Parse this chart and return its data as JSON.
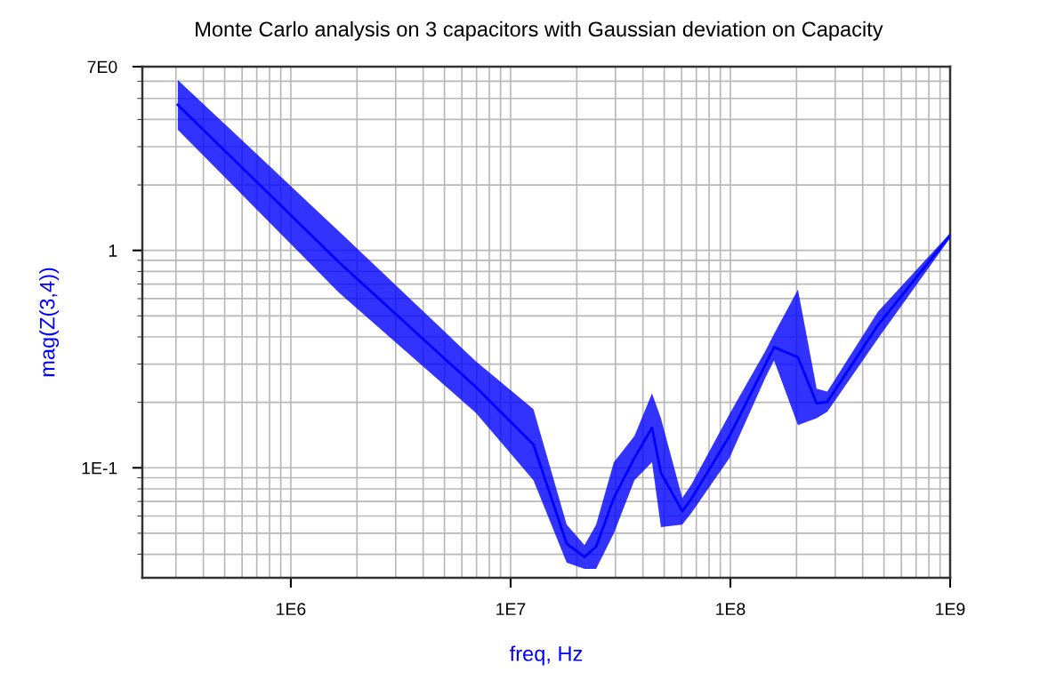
{
  "chart_data": {
    "type": "line",
    "title": "Monte Carlo analysis on 3 capacitors with Gaussian deviation on Capacity",
    "xlabel": "freq, Hz",
    "ylabel": "mag(Z(3,4))",
    "log": "xy",
    "grid": true,
    "xlim": [
      211000,
      1000000000
    ],
    "ylim": [
      0.0312,
      7
    ],
    "xticks": [
      {
        "value": 1000000,
        "label": "1E6"
      },
      {
        "value": 10000000,
        "label": "1E7"
      },
      {
        "value": 100000000,
        "label": "1E8"
      },
      {
        "value": 1000000000,
        "label": "1E9"
      }
    ],
    "yticks": [
      {
        "value": 0.1,
        "label": "1E-1"
      },
      1,
      {
        "value": 7,
        "label": "7E0"
      }
    ],
    "x": [
      306000,
      1660000,
      6950000,
      12700000,
      18000000,
      21700000,
      24500000,
      29500000,
      36600000,
      44000000,
      48300000,
      60400000,
      66400000,
      99100000,
      144000000,
      158000000,
      203000000,
      247000000,
      276000000,
      470000000,
      1000000000
    ],
    "series": [
      {
        "color": "#0000ff",
        "values": [
          4.67,
          0.88,
          0.235,
          0.128,
          0.0448,
          0.0389,
          0.0434,
          0.0727,
          0.111,
          0.153,
          0.0949,
          0.0631,
          0.0719,
          0.14,
          0.297,
          0.359,
          0.322,
          0.198,
          0.201,
          0.454,
          1.17
        ],
        "lower": [
          3.59,
          0.637,
          0.179,
          0.0877,
          0.0366,
          0.0343,
          0.0343,
          0.0499,
          0.0877,
          0.106,
          0.0533,
          0.0548,
          0.0619,
          0.111,
          0.258,
          0.312,
          0.157,
          0.169,
          0.181,
          0.394,
          1.14
        ],
        "upper": [
          6.08,
          1.22,
          0.309,
          0.186,
          0.0548,
          0.0441,
          0.0548,
          0.106,
          0.14,
          0.22,
          0.169,
          0.0727,
          0.0836,
          0.177,
          0.343,
          0.413,
          0.661,
          0.231,
          0.224,
          0.523,
          1.2
        ]
      }
    ]
  }
}
